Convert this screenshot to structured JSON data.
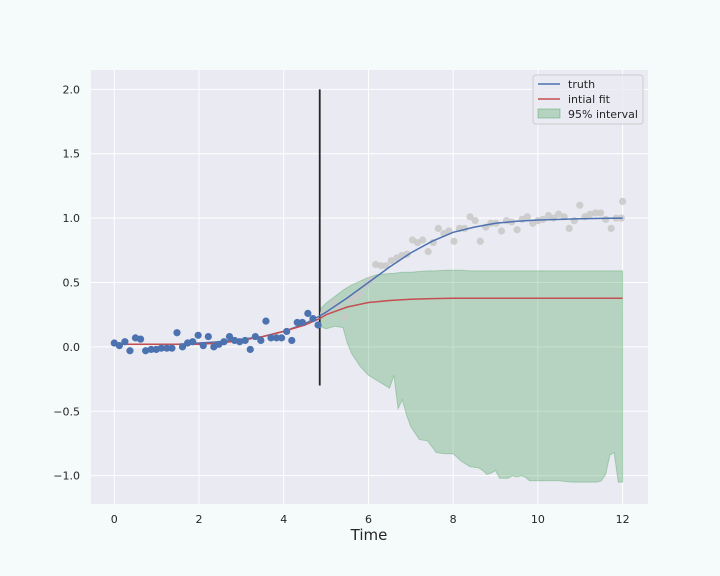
{
  "chart_data": {
    "type": "line",
    "xlabel": "Time",
    "ylabel": "",
    "title": "",
    "xlim": [
      -0.55,
      12.6
    ],
    "ylim": [
      -1.22,
      2.15
    ],
    "xticks": [
      0,
      2,
      4,
      6,
      8,
      10,
      12
    ],
    "yticks": [
      -1.0,
      -0.5,
      0.0,
      0.5,
      1.0,
      1.5,
      2.0
    ],
    "xtick_labels": [
      "0",
      "2",
      "4",
      "6",
      "8",
      "10",
      "12"
    ],
    "ytick_labels": [
      "−1.0",
      "−0.5",
      "0.0",
      "0.5",
      "1.0",
      "1.5",
      "2.0"
    ],
    "grid": true,
    "legend_position": "top-right",
    "vline": {
      "x": 4.85,
      "ymin": -0.3,
      "ymax": 2.0,
      "color": "#262626"
    },
    "observed": {
      "color": "#4c72b0",
      "x": [
        0.0,
        0.12,
        0.25,
        0.37,
        0.5,
        0.62,
        0.74,
        0.87,
        0.99,
        1.11,
        1.24,
        1.36,
        1.48,
        1.61,
        1.73,
        1.85,
        1.98,
        2.1,
        2.22,
        2.35,
        2.47,
        2.59,
        2.72,
        2.84,
        2.96,
        3.09,
        3.21,
        3.33,
        3.46,
        3.58,
        3.7,
        3.83,
        3.95,
        4.07,
        4.19,
        4.32,
        4.44,
        4.57,
        4.69,
        4.81
      ],
      "y": [
        0.03,
        0.01,
        0.04,
        -0.03,
        0.07,
        0.06,
        -0.03,
        -0.02,
        -0.02,
        -0.01,
        -0.01,
        -0.01,
        0.11,
        0.0,
        0.03,
        0.04,
        0.09,
        0.01,
        0.08,
        0.0,
        0.02,
        0.04,
        0.08,
        0.05,
        0.04,
        0.05,
        -0.02,
        0.08,
        0.05,
        0.2,
        0.07,
        0.07,
        0.07,
        0.12,
        0.05,
        0.19,
        0.19,
        0.26,
        0.22,
        0.17
      ]
    },
    "future": {
      "color": "#c8c8c8",
      "x": [
        4.94,
        5.06,
        5.19,
        5.31,
        5.43,
        5.56,
        5.68,
        5.8,
        5.93,
        6.05,
        6.17,
        6.3,
        6.42,
        6.54,
        6.67,
        6.79,
        6.91,
        7.04,
        7.16,
        7.28,
        7.41,
        7.53,
        7.65,
        7.78,
        7.9,
        8.02,
        8.15,
        8.27,
        8.4,
        8.52,
        8.64,
        8.77,
        8.89,
        9.01,
        9.14,
        9.26,
        9.38,
        9.51,
        9.63,
        9.75,
        9.88,
        10.0,
        10.12,
        10.25,
        10.37,
        10.49,
        10.62,
        10.74,
        10.86,
        10.99,
        11.11,
        11.23,
        11.36,
        11.48,
        11.6,
        11.73,
        11.85,
        11.97,
        12.0
      ],
      "y": [
        0.26,
        0.27,
        0.34,
        0.31,
        0.23,
        0.36,
        0.39,
        0.41,
        0.48,
        0.52,
        0.64,
        0.63,
        0.63,
        0.67,
        0.69,
        0.71,
        0.72,
        0.83,
        0.81,
        0.83,
        0.74,
        0.81,
        0.92,
        0.88,
        0.9,
        0.82,
        0.92,
        0.92,
        1.01,
        0.98,
        0.82,
        0.93,
        0.96,
        0.96,
        0.9,
        0.98,
        0.97,
        0.91,
        0.99,
        1.01,
        0.96,
        0.98,
        0.99,
        1.02,
        1.0,
        1.03,
        1.01,
        0.92,
        0.98,
        1.1,
        1.01,
        1.03,
        1.04,
        1.04,
        0.99,
        0.92,
        1.0,
        1.0,
        1.13
      ]
    },
    "series": [
      {
        "name": "truth",
        "color": "#4c72b0",
        "x": [
          0,
          0.5,
          1,
          1.5,
          2,
          2.5,
          3,
          3.5,
          4,
          4.5,
          4.85,
          5,
          5.5,
          6,
          6.5,
          7,
          7.5,
          8,
          8.5,
          9,
          9.5,
          10,
          10.5,
          11,
          11.5,
          12
        ],
        "y": [
          0.02,
          0.02,
          0.02,
          0.02,
          0.03,
          0.04,
          0.06,
          0.08,
          0.12,
          0.18,
          0.24,
          0.27,
          0.38,
          0.5,
          0.62,
          0.73,
          0.82,
          0.89,
          0.93,
          0.96,
          0.975,
          0.985,
          0.99,
          0.995,
          0.998,
          1.0
        ]
      },
      {
        "name": "intial fit",
        "color": "#c44e52",
        "x": [
          0,
          0.5,
          1,
          1.5,
          2,
          2.5,
          3,
          3.5,
          4,
          4.5,
          4.85,
          5,
          5.5,
          6,
          6.5,
          7,
          7.5,
          8,
          9,
          10,
          11,
          12
        ],
        "y": [
          0.02,
          0.02,
          0.02,
          0.02,
          0.02,
          0.03,
          0.05,
          0.08,
          0.12,
          0.17,
          0.22,
          0.25,
          0.31,
          0.345,
          0.36,
          0.37,
          0.375,
          0.377,
          0.378,
          0.378,
          0.378,
          0.378
        ]
      }
    ],
    "interval": {
      "name": "95% interval",
      "color": "#55a868",
      "x": [
        4.85,
        5.0,
        5.2,
        5.4,
        5.5,
        5.6,
        5.8,
        6.0,
        6.2,
        6.5,
        6.6,
        6.7,
        6.8,
        6.9,
        7.0,
        7.2,
        7.4,
        7.6,
        7.8,
        8.0,
        8.2,
        8.4,
        8.6,
        8.7,
        8.8,
        8.9,
        9.0,
        9.1,
        9.2,
        9.3,
        9.4,
        9.5,
        9.6,
        9.7,
        9.8,
        10.0,
        10.2,
        10.5,
        10.8,
        11.0,
        11.2,
        11.4,
        11.5,
        11.6,
        11.7,
        11.8,
        11.9,
        12.0
      ],
      "upper": [
        0.29,
        0.34,
        0.39,
        0.44,
        0.46,
        0.48,
        0.51,
        0.54,
        0.56,
        0.57,
        0.57,
        0.575,
        0.58,
        0.58,
        0.58,
        0.585,
        0.59,
        0.59,
        0.595,
        0.595,
        0.595,
        0.59,
        0.59,
        0.59,
        0.59,
        0.59,
        0.59,
        0.59,
        0.59,
        0.59,
        0.59,
        0.59,
        0.59,
        0.59,
        0.59,
        0.59,
        0.59,
        0.59,
        0.59,
        0.59,
        0.59,
        0.59,
        0.59,
        0.59,
        0.59,
        0.59,
        0.59,
        0.59
      ],
      "lower": [
        0.16,
        0.14,
        0.16,
        0.15,
        0.03,
        -0.05,
        -0.15,
        -0.22,
        -0.26,
        -0.32,
        -0.22,
        -0.48,
        -0.41,
        -0.53,
        -0.62,
        -0.72,
        -0.73,
        -0.82,
        -0.83,
        -0.83,
        -0.89,
        -0.93,
        -0.94,
        -0.96,
        -0.99,
        -0.98,
        -0.96,
        -1.02,
        -1.02,
        -1.02,
        -1.0,
        -1.01,
        -1.0,
        -1.01,
        -1.04,
        -1.04,
        -1.04,
        -1.04,
        -1.05,
        -1.05,
        -1.05,
        -1.05,
        -1.04,
        -0.99,
        -0.84,
        -0.82,
        -1.05,
        -1.05
      ]
    }
  }
}
